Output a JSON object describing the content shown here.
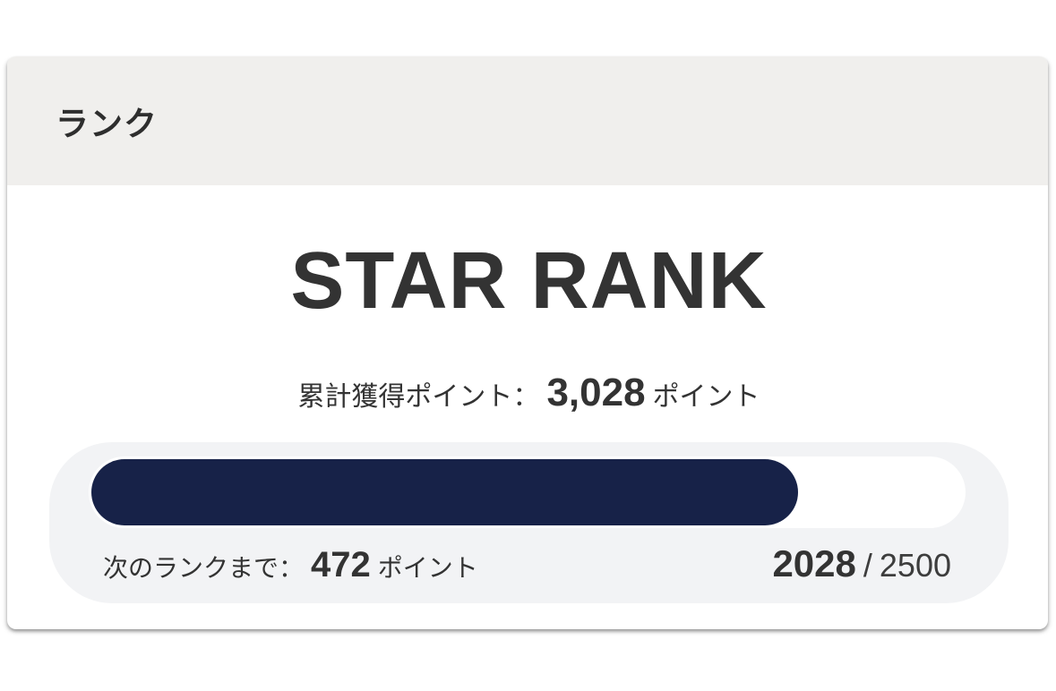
{
  "header": {
    "title": "ランク"
  },
  "rank": {
    "name": "STAR RANK",
    "total_points_label": "累計獲得ポイント：",
    "total_points_value": "3,028",
    "total_points_unit": "ポイント",
    "next_rank_label": "次のランクまで：",
    "next_rank_value": "472",
    "next_rank_unit": "ポイント",
    "progress_current": "2028",
    "progress_separator": "/",
    "progress_max": "2500",
    "progress_percent": 81.1
  },
  "colors": {
    "accent_navy": "#172248",
    "header_bg": "#f0efed",
    "progress_box_bg": "#f2f3f5",
    "text_dark": "#333333",
    "card_bg": "#ffffff"
  }
}
